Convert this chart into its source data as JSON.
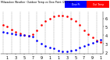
{
  "title": "Milwaukee Weather  Outdoor Temp\nvs Dew Point\n(24 Hours)",
  "temp_x": [
    0,
    1,
    2,
    3,
    4,
    5,
    6,
    7,
    8,
    9,
    10,
    11,
    12,
    13,
    14,
    15,
    16,
    17,
    18,
    19,
    20,
    21,
    22,
    23
  ],
  "temp_y": [
    52,
    50,
    47,
    44,
    42,
    40,
    39,
    41,
    46,
    52,
    57,
    60,
    62,
    63,
    63,
    62,
    60,
    57,
    52,
    46,
    41,
    37,
    34,
    32
  ],
  "dew_x": [
    0,
    1,
    2,
    3,
    4,
    5,
    6,
    7,
    8,
    9,
    10,
    11,
    12,
    13,
    14,
    15,
    16,
    17,
    18,
    19,
    20,
    21,
    22,
    23
  ],
  "dew_y": [
    44,
    43,
    42,
    41,
    40,
    40,
    39,
    38,
    34,
    30,
    27,
    25,
    24,
    22,
    21,
    21,
    22,
    23,
    25,
    27,
    29,
    31,
    33,
    35
  ],
  "temp_color": "#ff0000",
  "dew_color": "#0000ff",
  "bg_color": "#ffffff",
  "grid_color": "#888888",
  "ylim": [
    18,
    68
  ],
  "yticks": [
    20,
    30,
    40,
    50,
    60
  ],
  "ytick_labels": [
    "2",
    "3",
    "4",
    "5",
    "6"
  ],
  "xtick_positions": [
    1,
    3,
    5,
    7,
    9,
    11,
    13,
    15,
    17,
    19,
    21,
    23
  ],
  "xtick_labels": [
    "1",
    "3",
    "5",
    "7",
    "9",
    "1",
    "1",
    "3",
    "5",
    "7",
    "9",
    "1"
  ],
  "xlabel_fontsize": 3.5,
  "ylabel_fontsize": 3.5,
  "marker_size": 1.8,
  "legend_blue_label": "Dew Pt",
  "legend_red_label": "Out Temp"
}
